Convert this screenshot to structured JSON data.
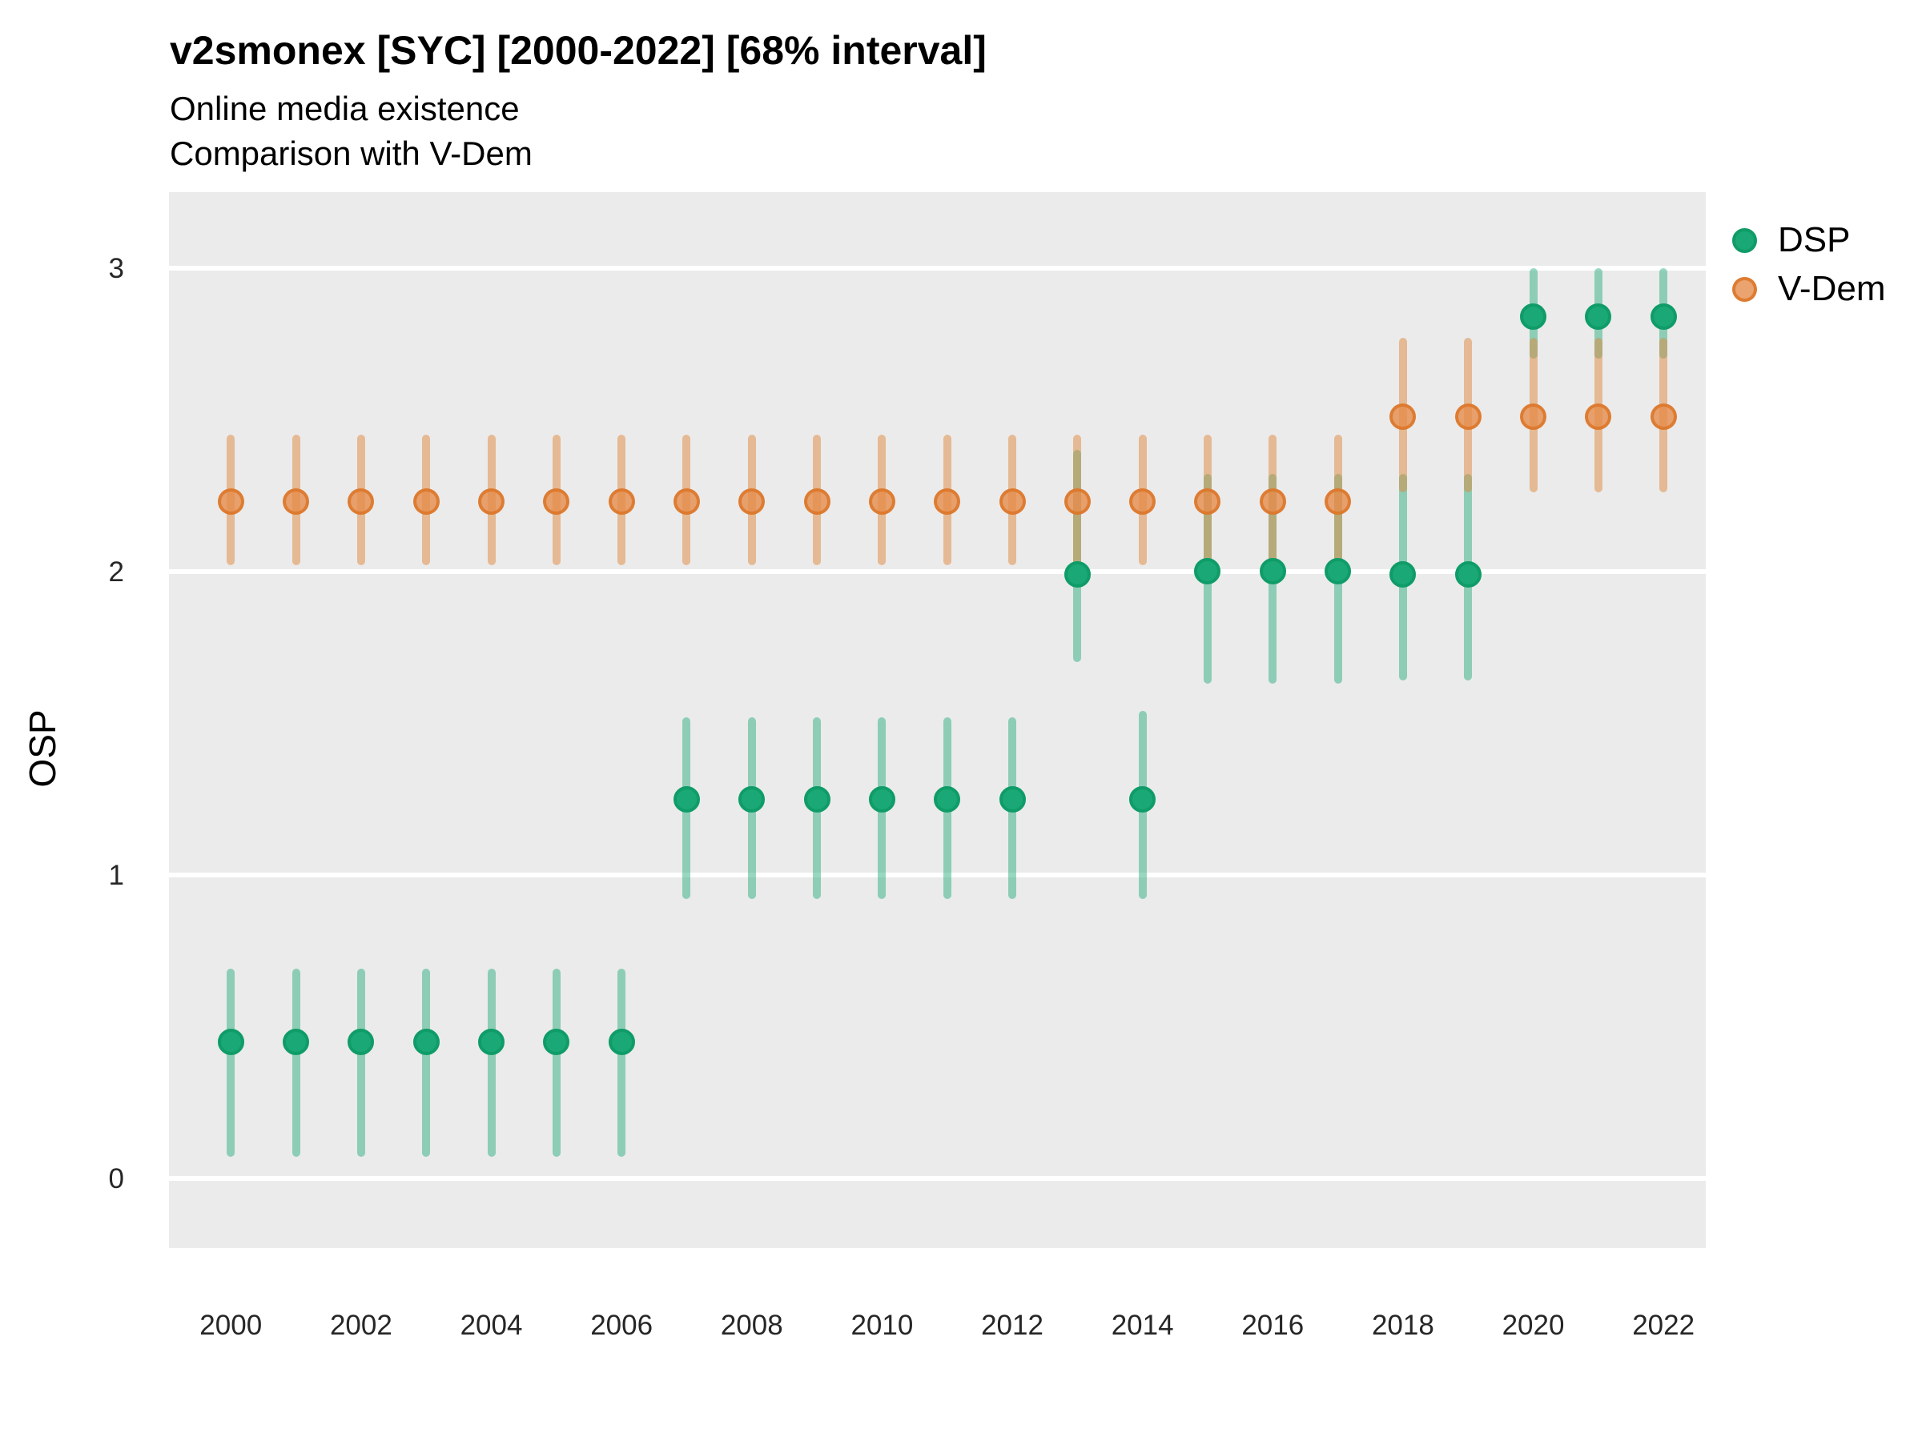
{
  "chart_data": {
    "type": "scatter",
    "title": "v2smonex [SYC] [2000-2022] [68% interval]",
    "subtitle1": "Online media existence",
    "subtitle2": "Comparison with V-Dem",
    "ylabel": "OSP",
    "xlabel": "",
    "interval": "68%",
    "xlim": [
      1999.05,
      2022.65
    ],
    "ylim": [
      -0.23,
      3.25
    ],
    "x_ticks": [
      2000,
      2002,
      2004,
      2006,
      2008,
      2010,
      2012,
      2014,
      2016,
      2018,
      2020,
      2022
    ],
    "y_ticks": [
      0,
      1,
      2,
      3
    ],
    "grid": "major horizontal white lines on gray panel",
    "legend_position": "right",
    "colors": {
      "panel_bg": "#ebebeb",
      "gridline": "#ffffff",
      "dsp_point_fill": "#1aa876",
      "dsp_point_stroke": "#0f9c68",
      "dsp_bar": "rgba(26,168,118,0.45)",
      "vdem_point_fill": "rgba(230,140,75,0.8)",
      "vdem_point_stroke": "rgba(218,118,40,0.85)",
      "vdem_bar": "rgba(223,135,60,0.5)",
      "tick_text": "#262626",
      "title_text": "#000000"
    },
    "series": [
      {
        "name": "DSP",
        "point_fill": "#1aa876",
        "point_stroke": "#0f9c68",
        "bar_color": "rgba(26,168,118,0.45)",
        "points": [
          {
            "x": 2000,
            "y": 0.45,
            "lo": 0.07,
            "hi": 0.69
          },
          {
            "x": 2001,
            "y": 0.45,
            "lo": 0.07,
            "hi": 0.69
          },
          {
            "x": 2002,
            "y": 0.45,
            "lo": 0.07,
            "hi": 0.69
          },
          {
            "x": 2003,
            "y": 0.45,
            "lo": 0.07,
            "hi": 0.69
          },
          {
            "x": 2004,
            "y": 0.45,
            "lo": 0.07,
            "hi": 0.69
          },
          {
            "x": 2005,
            "y": 0.45,
            "lo": 0.07,
            "hi": 0.69
          },
          {
            "x": 2006,
            "y": 0.45,
            "lo": 0.07,
            "hi": 0.69
          },
          {
            "x": 2007,
            "y": 1.25,
            "lo": 0.92,
            "hi": 1.52
          },
          {
            "x": 2008,
            "y": 1.25,
            "lo": 0.92,
            "hi": 1.52
          },
          {
            "x": 2009,
            "y": 1.25,
            "lo": 0.92,
            "hi": 1.52
          },
          {
            "x": 2010,
            "y": 1.25,
            "lo": 0.92,
            "hi": 1.52
          },
          {
            "x": 2011,
            "y": 1.25,
            "lo": 0.92,
            "hi": 1.52
          },
          {
            "x": 2012,
            "y": 1.25,
            "lo": 0.92,
            "hi": 1.52
          },
          {
            "x": 2013,
            "y": 1.99,
            "lo": 1.7,
            "hi": 2.4
          },
          {
            "x": 2014,
            "y": 1.25,
            "lo": 0.92,
            "hi": 1.54
          },
          {
            "x": 2015,
            "y": 2.0,
            "lo": 1.63,
            "hi": 2.32
          },
          {
            "x": 2016,
            "y": 2.0,
            "lo": 1.63,
            "hi": 2.32
          },
          {
            "x": 2017,
            "y": 2.0,
            "lo": 1.63,
            "hi": 2.32
          },
          {
            "x": 2018,
            "y": 1.99,
            "lo": 1.64,
            "hi": 2.32
          },
          {
            "x": 2019,
            "y": 1.99,
            "lo": 1.64,
            "hi": 2.32
          },
          {
            "x": 2020,
            "y": 2.84,
            "lo": 2.7,
            "hi": 3.0
          },
          {
            "x": 2021,
            "y": 2.84,
            "lo": 2.7,
            "hi": 3.0
          },
          {
            "x": 2022,
            "y": 2.84,
            "lo": 2.7,
            "hi": 3.0
          }
        ]
      },
      {
        "name": "V-Dem",
        "point_fill": "rgba(230,140,75,0.8)",
        "point_stroke": "rgba(218,118,40,0.85)",
        "bar_color": "rgba(223,135,60,0.5)",
        "points": [
          {
            "x": 2000,
            "y": 2.23,
            "lo": 2.02,
            "hi": 2.45
          },
          {
            "x": 2001,
            "y": 2.23,
            "lo": 2.02,
            "hi": 2.45
          },
          {
            "x": 2002,
            "y": 2.23,
            "lo": 2.02,
            "hi": 2.45
          },
          {
            "x": 2003,
            "y": 2.23,
            "lo": 2.02,
            "hi": 2.45
          },
          {
            "x": 2004,
            "y": 2.23,
            "lo": 2.02,
            "hi": 2.45
          },
          {
            "x": 2005,
            "y": 2.23,
            "lo": 2.02,
            "hi": 2.45
          },
          {
            "x": 2006,
            "y": 2.23,
            "lo": 2.02,
            "hi": 2.45
          },
          {
            "x": 2007,
            "y": 2.23,
            "lo": 2.02,
            "hi": 2.45
          },
          {
            "x": 2008,
            "y": 2.23,
            "lo": 2.02,
            "hi": 2.45
          },
          {
            "x": 2009,
            "y": 2.23,
            "lo": 2.02,
            "hi": 2.45
          },
          {
            "x": 2010,
            "y": 2.23,
            "lo": 2.02,
            "hi": 2.45
          },
          {
            "x": 2011,
            "y": 2.23,
            "lo": 2.02,
            "hi": 2.45
          },
          {
            "x": 2012,
            "y": 2.23,
            "lo": 2.02,
            "hi": 2.45
          },
          {
            "x": 2013,
            "y": 2.23,
            "lo": 2.02,
            "hi": 2.45
          },
          {
            "x": 2014,
            "y": 2.23,
            "lo": 2.02,
            "hi": 2.45
          },
          {
            "x": 2015,
            "y": 2.23,
            "lo": 2.02,
            "hi": 2.45
          },
          {
            "x": 2016,
            "y": 2.23,
            "lo": 2.02,
            "hi": 2.45
          },
          {
            "x": 2017,
            "y": 2.23,
            "lo": 2.02,
            "hi": 2.45
          },
          {
            "x": 2018,
            "y": 2.51,
            "lo": 2.26,
            "hi": 2.77
          },
          {
            "x": 2019,
            "y": 2.51,
            "lo": 2.26,
            "hi": 2.77
          },
          {
            "x": 2020,
            "y": 2.51,
            "lo": 2.26,
            "hi": 2.77
          },
          {
            "x": 2021,
            "y": 2.51,
            "lo": 2.26,
            "hi": 2.77
          },
          {
            "x": 2022,
            "y": 2.51,
            "lo": 2.26,
            "hi": 2.77
          }
        ]
      }
    ]
  }
}
